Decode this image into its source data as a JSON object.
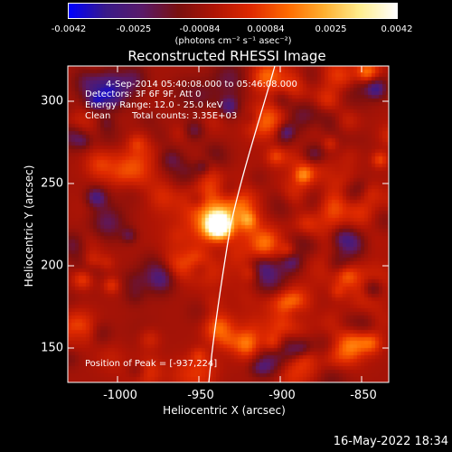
{
  "colorbar": {
    "ticks": [
      "-0.0042",
      "-0.0025",
      "-0.00084",
      "0.00084",
      "0.0025",
      "0.0042"
    ],
    "unit": "(photons cm⁻² s⁻¹ asec⁻²)"
  },
  "title": "Reconstructed RHESSI Image",
  "info": {
    "time": "4-Sep-2014 05:40:08.000 to 05:46:08.000",
    "detectors": "Detectors: 3F 6F 9F, Att 0",
    "energy": "Energy Range: 12.0 - 25.0 keV",
    "method": "Clean",
    "counts": "Total counts: 3.35E+03",
    "peak": "Position of Peak = [-937,224]"
  },
  "axes": {
    "xlabel": "Heliocentric X (arcsec)",
    "ylabel": "Heliocentric Y (arcsec)",
    "xticks": [
      "-1000",
      "-950",
      "-900",
      "-850"
    ],
    "yticks": [
      "300",
      "250",
      "200",
      "150"
    ],
    "xlim": [
      -1030,
      -830
    ],
    "ylim": [
      127,
      320
    ]
  },
  "image": {
    "peak_x": -937,
    "peak_y": 224,
    "colors": [
      "#0000ff",
      "#3a1a8a",
      "#5a1a6a",
      "#7a1010",
      "#b01505",
      "#e02a00",
      "#ff6a00",
      "#ffb030",
      "#ffee90",
      "#ffffff"
    ]
  },
  "footer": "16-May-2022 18:34"
}
